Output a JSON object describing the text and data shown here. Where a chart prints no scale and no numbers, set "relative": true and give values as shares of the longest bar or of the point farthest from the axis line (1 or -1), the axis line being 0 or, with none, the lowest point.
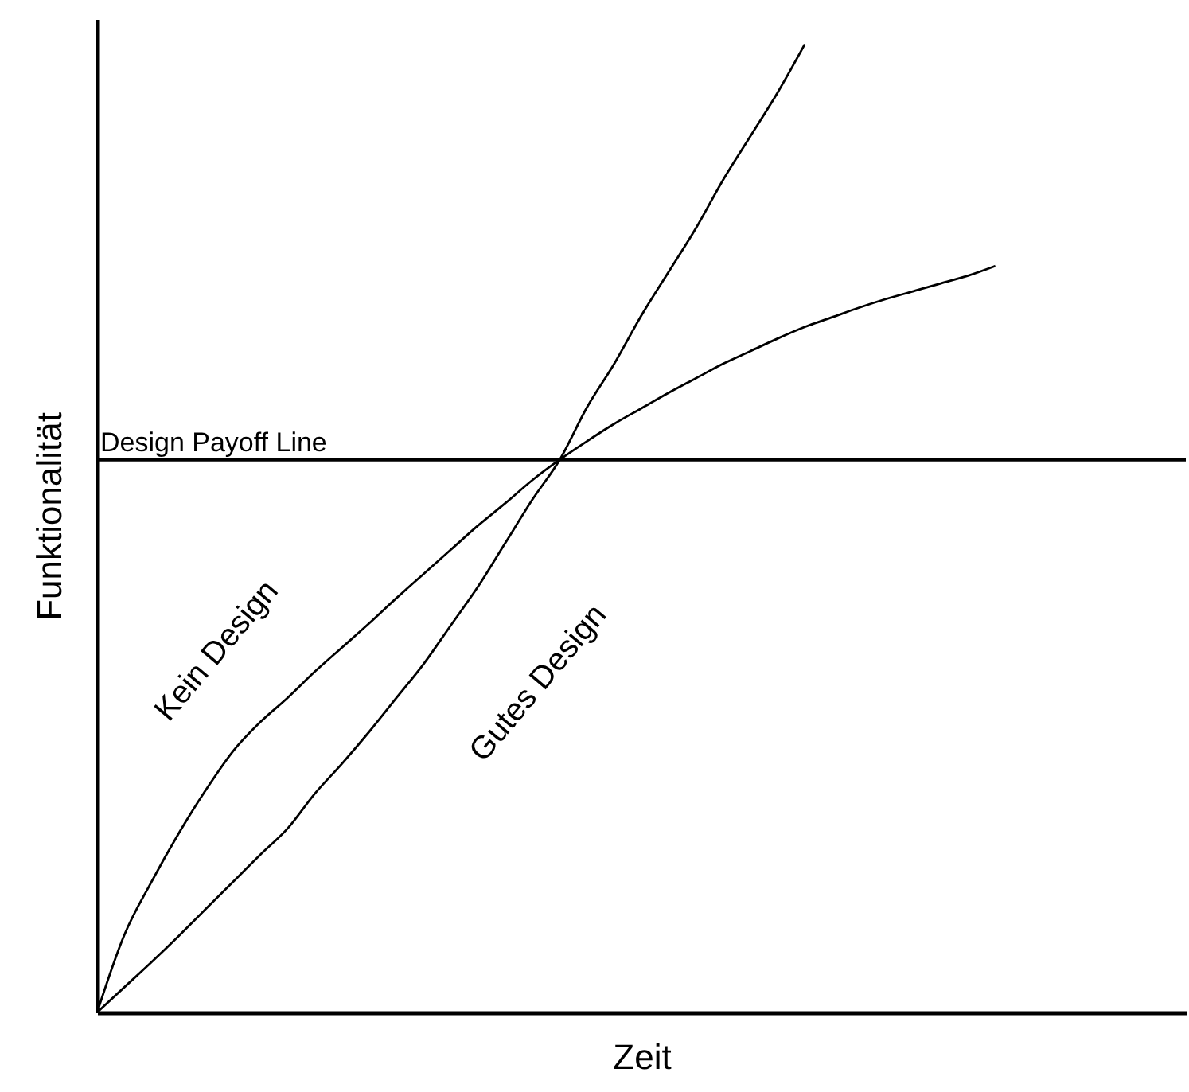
{
  "chart_data": {
    "type": "line",
    "relative": true,
    "xlabel": "Zeit",
    "ylabel": "Funktionalität",
    "categories": [
      null,
      null,
      null,
      null,
      null,
      null,
      null,
      null,
      null,
      null,
      null,
      null,
      null,
      null,
      null,
      null,
      null,
      null,
      null,
      null,
      null,
      null,
      null,
      null,
      null,
      null,
      null,
      null,
      null,
      null,
      null,
      null,
      null,
      null,
      null,
      null,
      null,
      null,
      null,
      null,
      null
    ],
    "series": [
      {
        "name": "Kein Design",
        "color": "#000000",
        "values": [
          0,
          0.08,
          0.135,
          0.185,
          0.23,
          0.27,
          0.3,
          0.325,
          0.352,
          0.377,
          0.402,
          0.428,
          0.453,
          0.478,
          0.503,
          0.526,
          0.55,
          0.571,
          0.59,
          0.608,
          0.624,
          0.64,
          0.655,
          0.67,
          0.683,
          0.696,
          0.708,
          0.718,
          0.728,
          0.737,
          0.745,
          0.753,
          0.761,
          0.771,
          null,
          null,
          null,
          null,
          null,
          null,
          null
        ]
      },
      {
        "name": "Gutes Design",
        "color": "#000000",
        "values": [
          0,
          0.026,
          0.052,
          0.079,
          0.107,
          0.135,
          0.163,
          0.19,
          0.226,
          0.257,
          0.29,
          0.325,
          0.36,
          0.4,
          0.44,
          0.485,
          0.53,
          0.571,
          0.625,
          0.67,
          0.72,
          0.765,
          0.81,
          0.86,
          0.905,
          0.95,
          1,
          null,
          null,
          null,
          null,
          null,
          null,
          null,
          null,
          null,
          null,
          null,
          null,
          null,
          null
        ]
      }
    ],
    "ref_lines": [
      {
        "axis": "y",
        "value": 0.571,
        "label": "Design Payoff Line",
        "color": "#000000"
      }
    ],
    "legend": false,
    "grid": false
  }
}
